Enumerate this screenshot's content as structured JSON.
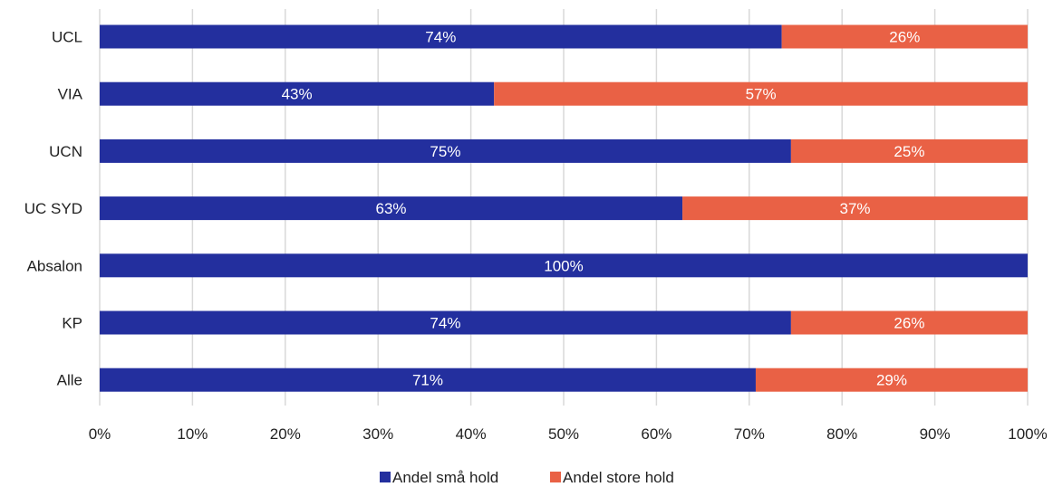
{
  "chart_data": {
    "type": "bar",
    "orientation": "horizontal",
    "stacked": true,
    "categories": [
      "UCL",
      "VIA",
      "UCN",
      "UC SYD",
      "Absalon",
      "KP",
      "Alle"
    ],
    "series": [
      {
        "name": "Andel små hold",
        "color": "#232f9e",
        "values": [
          73.5,
          42.5,
          74.5,
          62.8,
          100,
          74.5,
          70.7
        ],
        "labels": [
          "74%",
          "43%",
          "75%",
          "63%",
          "100%",
          "74%",
          "71%"
        ]
      },
      {
        "name": "Andel store hold",
        "color": "#e96145",
        "values": [
          26.5,
          57.5,
          25.5,
          37.2,
          0,
          25.5,
          29.3
        ],
        "labels": [
          "26%",
          "57%",
          "25%",
          "37%",
          "",
          "26%",
          "29%"
        ]
      }
    ],
    "x_ticks": [
      "0%",
      "10%",
      "20%",
      "30%",
      "40%",
      "50%",
      "60%",
      "70%",
      "80%",
      "90%",
      "100%"
    ],
    "xlim": [
      0,
      100
    ],
    "grid": "vertical",
    "legend_position": "bottom",
    "title": "",
    "xlabel": "",
    "ylabel": ""
  }
}
